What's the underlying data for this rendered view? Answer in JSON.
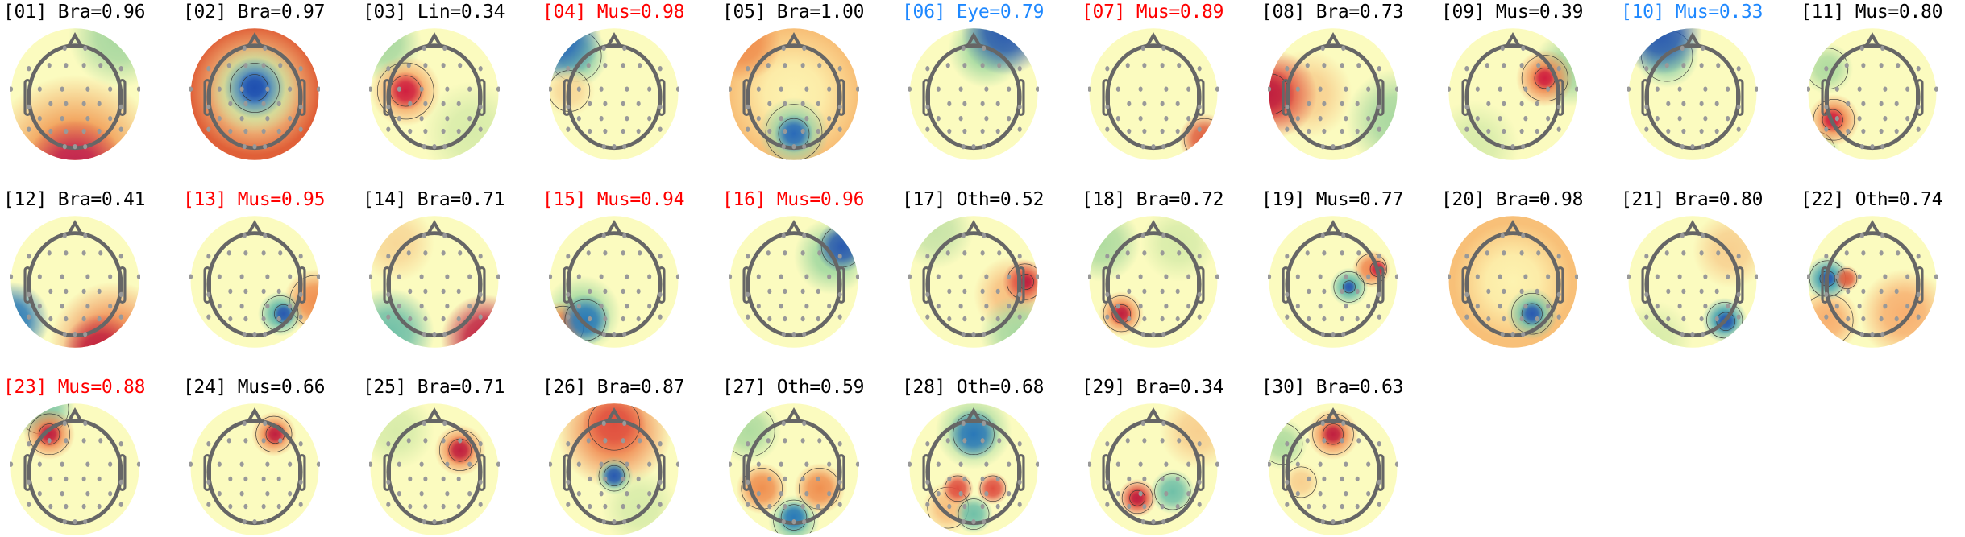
{
  "colors": {
    "default": "#000000",
    "muscle_highlight": "#ff0000",
    "eye_highlight": "#1e88ff"
  },
  "colormap": [
    "#2a5ab0",
    "#80c8a8",
    "#fbfbbf",
    "#f08850",
    "#c02040"
  ],
  "components": [
    {
      "title": "[01] Bra=0.96",
      "color": "#000000"
    },
    {
      "title": "[02] Bra=0.97",
      "color": "#000000"
    },
    {
      "title": "[03] Lin=0.34",
      "color": "#000000"
    },
    {
      "title": "[04] Mus=0.98",
      "color": "#ff0000"
    },
    {
      "title": "[05] Bra=1.00",
      "color": "#000000"
    },
    {
      "title": "[06] Eye=0.79",
      "color": "#1e88ff"
    },
    {
      "title": "[07] Mus=0.89",
      "color": "#ff0000"
    },
    {
      "title": "[08] Bra=0.73",
      "color": "#000000"
    },
    {
      "title": "[09] Mus=0.39",
      "color": "#000000"
    },
    {
      "title": "[10] Mus=0.33",
      "color": "#1e88ff"
    },
    {
      "title": "[11] Mus=0.80",
      "color": "#000000"
    },
    {
      "title": "[12] Bra=0.41",
      "color": "#000000"
    },
    {
      "title": "[13] Mus=0.95",
      "color": "#ff0000"
    },
    {
      "title": "[14] Bra=0.71",
      "color": "#000000"
    },
    {
      "title": "[15] Mus=0.94",
      "color": "#ff0000"
    },
    {
      "title": "[16] Mus=0.96",
      "color": "#ff0000"
    },
    {
      "title": "[17] Oth=0.52",
      "color": "#000000"
    },
    {
      "title": "[18] Bra=0.72",
      "color": "#000000"
    },
    {
      "title": "[19] Mus=0.77",
      "color": "#000000"
    },
    {
      "title": "[20] Bra=0.98",
      "color": "#000000"
    },
    {
      "title": "[21] Bra=0.80",
      "color": "#000000"
    },
    {
      "title": "[22] Oth=0.74",
      "color": "#000000"
    },
    {
      "title": "[23] Mus=0.88",
      "color": "#ff0000"
    },
    {
      "title": "[24] Mus=0.66",
      "color": "#000000"
    },
    {
      "title": "[25] Bra=0.71",
      "color": "#000000"
    },
    {
      "title": "[26] Bra=0.87",
      "color": "#000000"
    },
    {
      "title": "[27] Oth=0.59",
      "color": "#000000"
    },
    {
      "title": "[28] Oth=0.68",
      "color": "#000000"
    },
    {
      "title": "[29] Bra=0.34",
      "color": "#000000"
    },
    {
      "title": "[30] Bra=0.63",
      "color": "#000000"
    }
  ]
}
